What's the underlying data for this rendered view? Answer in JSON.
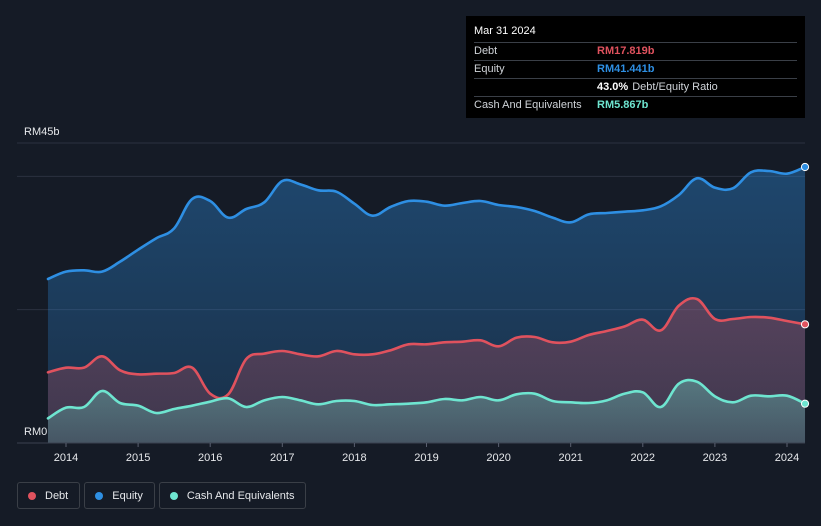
{
  "colors": {
    "debt": "#e0525e",
    "equity": "#2e8fe3",
    "cash": "#6ee5d0",
    "grid": "#2b3140",
    "background": "#151b26"
  },
  "tooltip": {
    "date": "Mar 31 2024",
    "rows": [
      {
        "label": "Debt",
        "value": "RM17.819b",
        "color": "#e0525e"
      },
      {
        "label": "Equity",
        "value": "RM41.441b",
        "color": "#2e8fe3"
      },
      {
        "label": "",
        "value": "43.0%",
        "color": "#ffffff",
        "suffix": "Debt/Equity Ratio"
      },
      {
        "label": "Cash And Equivalents",
        "value": "RM5.867b",
        "color": "#6ee5d0"
      }
    ]
  },
  "legend": [
    {
      "label": "Debt",
      "color": "#e0525e"
    },
    {
      "label": "Equity",
      "color": "#2e8fe3"
    },
    {
      "label": "Cash And Equivalents",
      "color": "#6ee5d0"
    }
  ],
  "chart_data": {
    "type": "area",
    "y_unit": "RM billions",
    "ylim": [
      0,
      45
    ],
    "y_tick_labels": [
      {
        "value": 45,
        "label": "RM45b"
      },
      {
        "value": 0,
        "label": "RM0"
      }
    ],
    "grid": true,
    "legend_position": "bottom-left",
    "x_ticks": [
      "2014",
      "2015",
      "2016",
      "2017",
      "2018",
      "2019",
      "2020",
      "2021",
      "2022",
      "2023",
      "2024"
    ],
    "x": [
      2013.75,
      2014.0,
      2014.25,
      2014.5,
      2014.75,
      2015.0,
      2015.25,
      2015.5,
      2015.75,
      2016.0,
      2016.25,
      2016.5,
      2016.75,
      2017.0,
      2017.25,
      2017.5,
      2017.75,
      2018.0,
      2018.25,
      2018.5,
      2018.75,
      2019.0,
      2019.25,
      2019.5,
      2019.75,
      2020.0,
      2020.25,
      2020.5,
      2020.75,
      2021.0,
      2021.25,
      2021.5,
      2021.75,
      2022.0,
      2022.25,
      2022.5,
      2022.75,
      2023.0,
      2023.25,
      2023.5,
      2023.75,
      2024.0,
      2024.25
    ],
    "series": [
      {
        "name": "Equity",
        "values": [
          24.6,
          25.7,
          25.9,
          25.7,
          27.2,
          29.0,
          30.7,
          32.2,
          36.6,
          36.3,
          33.8,
          35.1,
          36.1,
          39.3,
          38.8,
          37.9,
          37.7,
          35.9,
          34.1,
          35.4,
          36.3,
          36.2,
          35.6,
          36.0,
          36.3,
          35.7,
          35.4,
          34.8,
          33.8,
          33.1,
          34.3,
          34.5,
          34.7,
          34.9,
          35.5,
          37.2,
          39.7,
          38.3,
          38.2,
          40.6,
          40.8,
          40.4,
          41.4
        ]
      },
      {
        "name": "Debt",
        "values": [
          10.6,
          11.3,
          11.3,
          13.0,
          10.9,
          10.3,
          10.4,
          10.5,
          11.3,
          7.4,
          7.3,
          12.6,
          13.4,
          13.8,
          13.3,
          13.0,
          13.8,
          13.3,
          13.3,
          13.9,
          14.8,
          14.8,
          15.1,
          15.2,
          15.4,
          14.5,
          15.8,
          15.9,
          15.1,
          15.2,
          16.2,
          16.8,
          17.5,
          18.5,
          16.9,
          20.6,
          21.6,
          18.6,
          18.6,
          18.9,
          18.8,
          18.3,
          17.8
        ]
      },
      {
        "name": "Cash And Equivalents",
        "values": [
          3.7,
          5.3,
          5.4,
          7.8,
          6.0,
          5.6,
          4.5,
          5.1,
          5.6,
          6.2,
          6.7,
          5.4,
          6.4,
          6.9,
          6.4,
          5.8,
          6.3,
          6.3,
          5.7,
          5.8,
          5.9,
          6.1,
          6.6,
          6.4,
          6.9,
          6.4,
          7.3,
          7.4,
          6.3,
          6.1,
          6.0,
          6.4,
          7.4,
          7.6,
          5.4,
          8.9,
          9.2,
          7.0,
          6.1,
          7.1,
          7.0,
          7.1,
          5.9
        ]
      }
    ]
  }
}
